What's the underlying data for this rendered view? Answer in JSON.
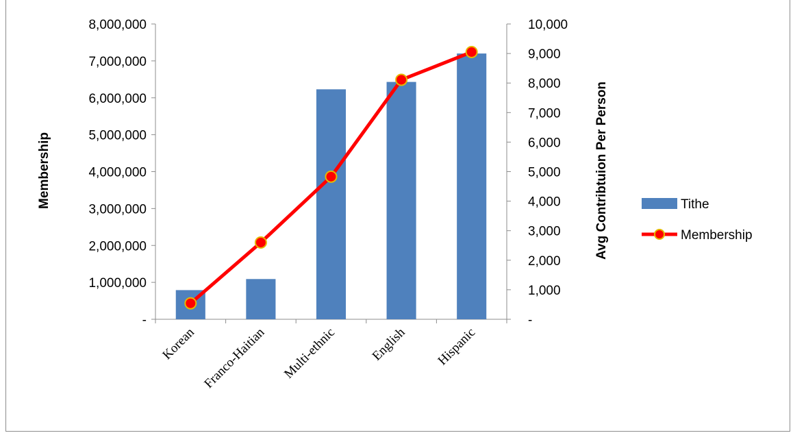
{
  "chart_data": {
    "type": "bar",
    "categories": [
      "Korean",
      "Franco-Haitian",
      "Multi-ethnic",
      "English",
      "Hispanic"
    ],
    "series": [
      {
        "name": "Tithe",
        "type": "bar",
        "axis": "left",
        "color": "#4f81bd",
        "values": [
          790000,
          1090000,
          6230000,
          6430000,
          7200000
        ]
      },
      {
        "name": "Membership",
        "type": "line",
        "axis": "right",
        "color": "#ff0000",
        "marker_color": "#ff0000",
        "marker_edge": "#e4b800",
        "values": [
          540,
          2600,
          4830,
          8110,
          9050
        ]
      }
    ],
    "ylabel": "Membership",
    "y2label": "Avg Contribtuion Per Person",
    "ylim": [
      0,
      8000000
    ],
    "y2lim": [
      0,
      10000
    ],
    "y_ticks": [
      "-",
      "1,000,000",
      "2,000,000",
      "3,000,000",
      "4,000,000",
      "5,000,000",
      "6,000,000",
      "7,000,000",
      "8,000,000"
    ],
    "y2_ticks": [
      "-",
      "1,000",
      "2,000",
      "3,000",
      "4,000",
      "5,000",
      "6,000",
      "7,000",
      "8,000",
      "9,000",
      "10,000"
    ],
    "grid": false,
    "legend_position": "right"
  }
}
